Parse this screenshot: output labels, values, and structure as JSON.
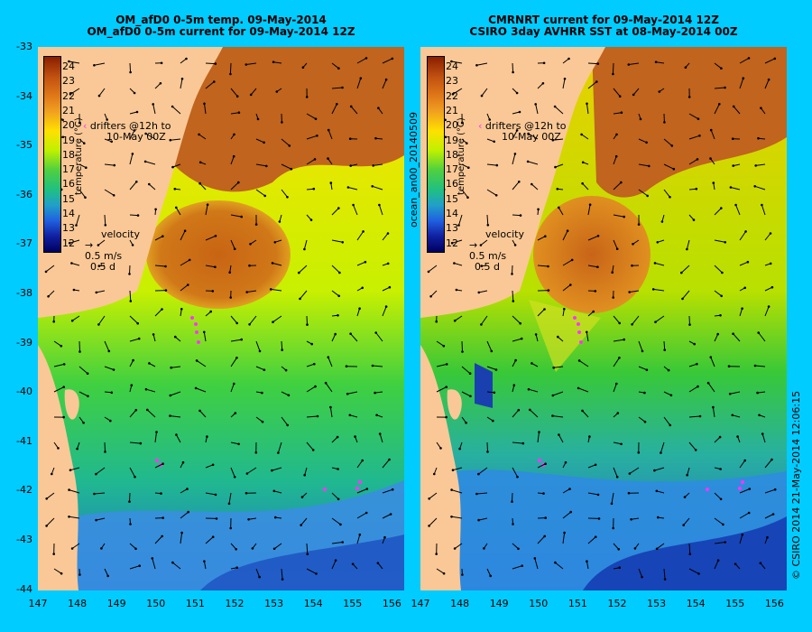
{
  "left_panel": {
    "title_line1": "OM_afD0 0-5m temp. 09-May-2014",
    "title_line2": "OM_afD0 0-5m current for 09-May-2014 12Z",
    "drifters_line1": "drifters @12h to",
    "drifters_line2": "10-May 00Z",
    "velocity_label": "velocity",
    "velocity_speed": "0.5 m/s",
    "velocity_time": "0.5 d",
    "colorbar_label": "temperature (°C)"
  },
  "right_panel": {
    "title_line1": "CMRNRT current for 09-May-2014 12Z",
    "title_line2": "CSIRO 3day AVHRR SST at 08-May-2014 00Z",
    "drifters_line1": "drifters @12h to",
    "drifters_line2": "10-May 00Z",
    "velocity_label": "velocity",
    "velocity_speed": "0.5 m/s",
    "velocity_time": "0.5 d",
    "colorbar_label": "temperature (°C)",
    "side_label": "ocean_an00_20140509",
    "credit": "© CSIRO 2014  21-May-2014 12:06:15"
  },
  "axes": {
    "latitudes": [
      "-33",
      "-34",
      "-35",
      "-36",
      "-37",
      "-38",
      "-39",
      "-40",
      "-41",
      "-42",
      "-43",
      "-44"
    ],
    "longitudes": [
      "147",
      "148",
      "149",
      "150",
      "151",
      "152",
      "153",
      "154",
      "155",
      "156"
    ]
  },
  "colorbar_ticks": [
    "24",
    "23",
    "22",
    "21",
    "20",
    "19",
    "18",
    "17",
    "16",
    "15",
    "14",
    "13",
    "12"
  ],
  "colors": {
    "background": "#00ccff",
    "land": "#fac896",
    "drifter": "#ff33ff"
  }
}
